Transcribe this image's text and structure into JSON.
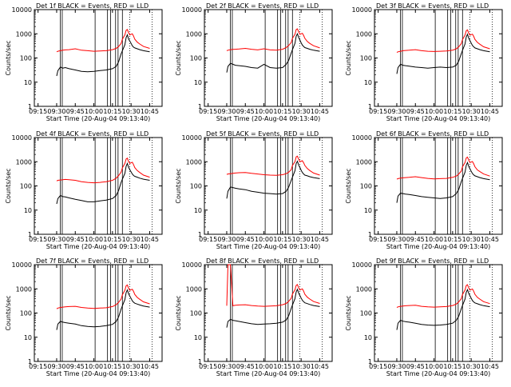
{
  "chart_data": {
    "type": "line",
    "layout": "3x3 grid of detector panels",
    "x_axis": {
      "label": "Start Time (20-Aug-04 09:13:40)",
      "tick_labels": [
        "09:15",
        "09:30",
        "09:45",
        "10:00",
        "10:15",
        "10:30",
        "10:45"
      ],
      "tick_minutes": [
        0,
        15,
        30,
        45,
        60,
        75,
        90
      ],
      "range_minutes": [
        -3,
        100
      ]
    },
    "y_axis": {
      "label": "Counts/sec",
      "scale": "log",
      "range": [
        1,
        10000
      ],
      "tick_labels": [
        "1",
        "10",
        "100",
        "1000",
        "10000"
      ]
    },
    "series_colors": {
      "events": "#000000",
      "lld": "#ff0000"
    },
    "markers": {
      "solid_lines_minutes": [
        18,
        19.5,
        46,
        56,
        58.5,
        62.5,
        64.5,
        68
      ],
      "dotted_lines_minutes": [
        74,
        92
      ]
    },
    "x_samples_minutes": [
      15,
      16,
      18,
      20,
      22,
      25,
      30,
      35,
      40,
      45,
      50,
      55,
      60,
      63,
      65,
      67,
      68,
      70,
      71,
      72,
      73,
      74,
      75,
      76,
      77,
      78,
      80,
      82,
      85,
      90
    ],
    "panels": [
      {
        "title": "Det 1f BLACK = Events, RED = LLD",
        "events": [
          18,
          30,
          42,
          38,
          40,
          36,
          32,
          28,
          27,
          28,
          30,
          32,
          36,
          45,
          70,
          150,
          200,
          350,
          700,
          900,
          600,
          500,
          400,
          320,
          280,
          260,
          240,
          220,
          200,
          180
        ],
        "lld": [
          180,
          190,
          200,
          210,
          215,
          220,
          240,
          210,
          200,
          190,
          195,
          200,
          220,
          250,
          300,
          400,
          600,
          900,
          1400,
          1500,
          1100,
          900,
          950,
          1000,
          800,
          600,
          450,
          380,
          300,
          250
        ]
      },
      {
        "title": "Det 2f BLACK = Events, RED = LLD",
        "events": [
          25,
          45,
          60,
          55,
          50,
          48,
          45,
          40,
          38,
          55,
          40,
          38,
          40,
          55,
          80,
          160,
          220,
          400,
          800,
          1000,
          700,
          550,
          420,
          340,
          300,
          270,
          250,
          230,
          210,
          190
        ],
        "lld": [
          200,
          210,
          220,
          225,
          230,
          235,
          250,
          230,
          215,
          240,
          215,
          210,
          230,
          270,
          330,
          430,
          650,
          950,
          1500,
          1600,
          1200,
          950,
          1000,
          1050,
          850,
          650,
          480,
          400,
          320,
          260
        ]
      },
      {
        "title": "Det 3f BLACK = Events, RED = LLD",
        "events": [
          22,
          40,
          55,
          50,
          48,
          46,
          42,
          40,
          38,
          40,
          42,
          40,
          42,
          50,
          75,
          150,
          210,
          380,
          750,
          950,
          650,
          520,
          410,
          330,
          290,
          260,
          240,
          220,
          200,
          180
        ],
        "lld": [
          170,
          180,
          190,
          200,
          205,
          210,
          220,
          200,
          190,
          185,
          190,
          195,
          210,
          240,
          290,
          390,
          580,
          880,
          1350,
          1450,
          1050,
          880,
          920,
          970,
          780,
          590,
          440,
          370,
          290,
          240
        ]
      },
      {
        "title": "Det 4f BLACK = Events, RED = LLD",
        "events": [
          18,
          30,
          40,
          36,
          35,
          32,
          28,
          25,
          22,
          22,
          24,
          26,
          30,
          40,
          65,
          140,
          190,
          330,
          650,
          850,
          580,
          470,
          380,
          310,
          270,
          250,
          230,
          210,
          190,
          170
        ],
        "lld": [
          160,
          170,
          175,
          180,
          185,
          180,
          170,
          150,
          140,
          135,
          140,
          150,
          170,
          210,
          270,
          370,
          560,
          850,
          1300,
          1400,
          1000,
          850,
          900,
          950,
          760,
          570,
          430,
          360,
          280,
          230
        ]
      },
      {
        "title": "Det 5f BLACK = Events, RED = LLD",
        "events": [
          30,
          60,
          90,
          85,
          80,
          75,
          70,
          60,
          55,
          50,
          48,
          46,
          48,
          60,
          90,
          170,
          230,
          420,
          850,
          1050,
          720,
          580,
          440,
          360,
          310,
          280,
          260,
          240,
          220,
          200
        ],
        "lld": [
          300,
          310,
          320,
          330,
          340,
          350,
          360,
          330,
          310,
          290,
          280,
          275,
          290,
          320,
          370,
          470,
          700,
          1000,
          1600,
          1700,
          1250,
          1000,
          1050,
          1100,
          900,
          700,
          520,
          430,
          340,
          280
        ]
      },
      {
        "title": "Det 6f BLACK = Events, RED = LLD",
        "events": [
          20,
          38,
          50,
          48,
          46,
          44,
          40,
          36,
          34,
          32,
          30,
          32,
          36,
          48,
          72,
          150,
          205,
          370,
          720,
          920,
          630,
          510,
          400,
          325,
          285,
          260,
          240,
          220,
          200,
          180
        ],
        "lld": [
          190,
          200,
          210,
          215,
          220,
          225,
          240,
          220,
          205,
          195,
          200,
          205,
          225,
          255,
          310,
          410,
          620,
          920,
          1450,
          1550,
          1150,
          920,
          970,
          1020,
          820,
          620,
          460,
          390,
          310,
          255
        ]
      },
      {
        "title": "Det 7f BLACK = Events, RED = LLD",
        "events": [
          20,
          35,
          45,
          42,
          40,
          38,
          35,
          30,
          28,
          27,
          28,
          30,
          34,
          45,
          70,
          145,
          200,
          360,
          700,
          900,
          620,
          500,
          400,
          320,
          280,
          255,
          235,
          215,
          195,
          175
        ],
        "lld": [
          150,
          160,
          170,
          175,
          180,
          185,
          190,
          170,
          160,
          155,
          160,
          165,
          185,
          220,
          280,
          380,
          570,
          870,
          1350,
          1450,
          1050,
          870,
          920,
          970,
          780,
          590,
          440,
          370,
          290,
          240
        ]
      },
      {
        "title": "Det 8f BLACK = Events, RED = LLD",
        "events": [
          25,
          45,
          55,
          50,
          48,
          45,
          40,
          36,
          34,
          35,
          36,
          38,
          42,
          52,
          78,
          155,
          215,
          390,
          760,
          960,
          660,
          530,
          415,
          335,
          295,
          265,
          245,
          225,
          205,
          185
        ],
        "lld": [
          200,
          10000,
          10000,
          200,
          210,
          215,
          220,
          205,
          195,
          190,
          195,
          200,
          220,
          250,
          305,
          405,
          610,
          910,
          1400,
          1500,
          1100,
          900,
          950,
          1000,
          800,
          600,
          450,
          380,
          300,
          250
        ]
      },
      {
        "title": "Det 9f BLACK = Events, RED = LLD",
        "events": [
          20,
          38,
          50,
          46,
          44,
          42,
          38,
          34,
          32,
          31,
          32,
          34,
          38,
          50,
          75,
          150,
          208,
          375,
          730,
          930,
          640,
          515,
          405,
          328,
          288,
          262,
          242,
          222,
          202,
          182
        ],
        "lld": [
          170,
          180,
          190,
          195,
          200,
          205,
          210,
          190,
          180,
          175,
          180,
          185,
          205,
          235,
          290,
          390,
          590,
          890,
          1380,
          1480,
          1080,
          890,
          940,
          990,
          790,
          600,
          445,
          375,
          295,
          245
        ]
      }
    ]
  }
}
